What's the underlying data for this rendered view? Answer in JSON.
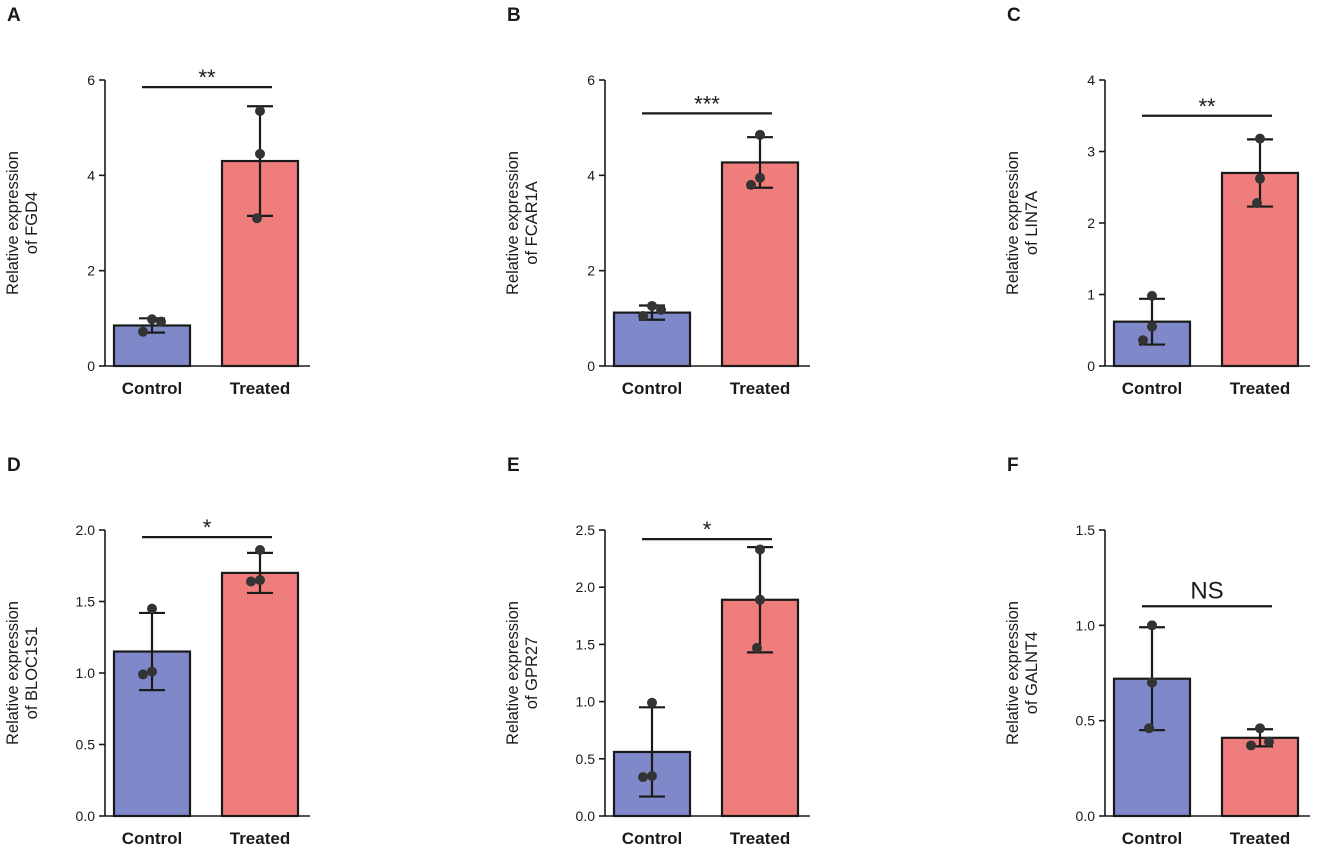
{
  "chart_data": [
    {
      "type": "bar",
      "panel": "A",
      "ylabel_line1": "Relative expression",
      "ylabel_line2": "of FGD4",
      "categories": [
        "Control",
        "Treated"
      ],
      "values": [
        0.85,
        4.3
      ],
      "error": [
        0.15,
        1.15
      ],
      "points": [
        [
          0.98,
          0.93,
          0.72
        ],
        [
          5.35,
          4.45,
          3.1
        ]
      ],
      "ylim": [
        0,
        6
      ],
      "yticks": [
        "0",
        "2",
        "4",
        "6"
      ],
      "ytick_values": [
        0,
        2,
        4,
        6
      ],
      "significance": "**",
      "sig_value": 5.85,
      "colors": [
        "#7f88c9",
        "#ee7d7c"
      ]
    },
    {
      "type": "bar",
      "panel": "B",
      "ylabel_line1": "Relative expression",
      "ylabel_line2": "of FCAR1A",
      "categories": [
        "Control",
        "Treated"
      ],
      "values": [
        1.12,
        4.27
      ],
      "error": [
        0.15,
        0.53
      ],
      "points": [
        [
          1.26,
          1.18,
          1.05
        ],
        [
          4.85,
          3.95,
          3.8
        ]
      ],
      "ylim": [
        0,
        6
      ],
      "yticks": [
        "0",
        "2",
        "4",
        "6"
      ],
      "ytick_values": [
        0,
        2,
        4,
        6
      ],
      "significance": "***",
      "sig_value": 5.3,
      "colors": [
        "#7f88c9",
        "#ee7d7c"
      ]
    },
    {
      "type": "bar",
      "panel": "C",
      "ylabel_line1": "Relative expression",
      "ylabel_line2": "of LIN7A",
      "categories": [
        "Control",
        "Treated"
      ],
      "values": [
        0.62,
        2.7
      ],
      "error": [
        0.32,
        0.47
      ],
      "points": [
        [
          0.98,
          0.55,
          0.36
        ],
        [
          3.18,
          2.62,
          2.28
        ]
      ],
      "ylim": [
        0,
        4
      ],
      "yticks": [
        "0",
        "1",
        "2",
        "3",
        "4"
      ],
      "ytick_values": [
        0,
        1,
        2,
        3,
        4
      ],
      "significance": "**",
      "sig_value": 3.5,
      "colors": [
        "#7f88c9",
        "#ee7d7c"
      ]
    },
    {
      "type": "bar",
      "panel": "D",
      "ylabel_line1": "Relative expression",
      "ylabel_line2": "of BLOC1S1",
      "categories": [
        "Control",
        "Treated"
      ],
      "values": [
        1.15,
        1.7
      ],
      "error": [
        0.27,
        0.14
      ],
      "points": [
        [
          1.45,
          1.01,
          0.99
        ],
        [
          1.86,
          1.65,
          1.64
        ]
      ],
      "ylim": [
        0,
        2.0
      ],
      "yticks": [
        "0.0",
        "0.5",
        "1.0",
        "1.5",
        "2.0"
      ],
      "ytick_values": [
        0,
        0.5,
        1.0,
        1.5,
        2.0
      ],
      "significance": "*",
      "sig_value": 1.95,
      "colors": [
        "#7f88c9",
        "#ee7d7c"
      ]
    },
    {
      "type": "bar",
      "panel": "E",
      "ylabel_line1": "Relative expression",
      "ylabel_line2": "of GPR27",
      "categories": [
        "Control",
        "Treated"
      ],
      "values": [
        0.56,
        1.89
      ],
      "error": [
        0.39,
        0.46
      ],
      "points": [
        [
          0.99,
          0.35,
          0.34
        ],
        [
          2.33,
          1.89,
          1.47
        ]
      ],
      "ylim": [
        0,
        2.5
      ],
      "yticks": [
        "0.0",
        "0.5",
        "1.0",
        "1.5",
        "2.0",
        "2.5"
      ],
      "ytick_values": [
        0,
        0.5,
        1.0,
        1.5,
        2.0,
        2.5
      ],
      "significance": "*",
      "sig_value": 2.42,
      "colors": [
        "#7f88c9",
        "#ee7d7c"
      ]
    },
    {
      "type": "bar",
      "panel": "F",
      "ylabel_line1": "Relative expression",
      "ylabel_line2": "of GALNT4",
      "categories": [
        "Control",
        "Treated"
      ],
      "values": [
        0.72,
        0.41
      ],
      "error": [
        0.27,
        0.045
      ],
      "points": [
        [
          1.0,
          0.7,
          0.46
        ],
        [
          0.46,
          0.39,
          0.37
        ]
      ],
      "ylim": [
        0,
        1.5
      ],
      "yticks": [
        "0.0",
        "0.5",
        "1.0",
        "1.5"
      ],
      "ytick_values": [
        0,
        0.5,
        1.0,
        1.5
      ],
      "significance": "NS",
      "sig_value": 1.1,
      "colors": [
        "#7f88c9",
        "#ee7d7c"
      ]
    }
  ]
}
